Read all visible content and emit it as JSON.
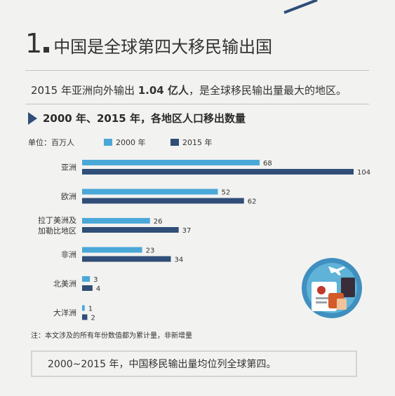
{
  "section": {
    "number": "1",
    "title": "中国是全球第四大移民输出国"
  },
  "intro": {
    "pre": "2015 年亚洲向外输出 ",
    "highlight": "1.04 亿人",
    "post": "，是全球移民输出量最大的地区。"
  },
  "subtitle": "2000 年、2015 年，各地区人口移出数量",
  "unit_label": "单位：百万人",
  "note": "注：本文涉及的所有年份数值都为累计量，非新增量",
  "summary": "2000~2015 年，中国移民输出量均位列全球第四。",
  "colors": {
    "series_2000": "#4aa8d8",
    "series_2015": "#2f4e78",
    "accent": "#2f4e78"
  },
  "chart_data": {
    "type": "bar",
    "orientation": "horizontal",
    "categories": [
      "亚洲",
      "欧洲",
      "拉丁美洲及\n加勒比地区",
      "非洲",
      "北美洲",
      "大洋洲"
    ],
    "series": [
      {
        "name": "2000 年",
        "values": [
          68,
          52,
          26,
          23,
          3,
          1
        ]
      },
      {
        "name": "2015 年",
        "values": [
          104,
          62,
          37,
          34,
          4,
          2
        ]
      }
    ],
    "unit": "百万人",
    "legend_position": "top",
    "grid": false,
    "xlim": [
      0,
      104
    ]
  }
}
